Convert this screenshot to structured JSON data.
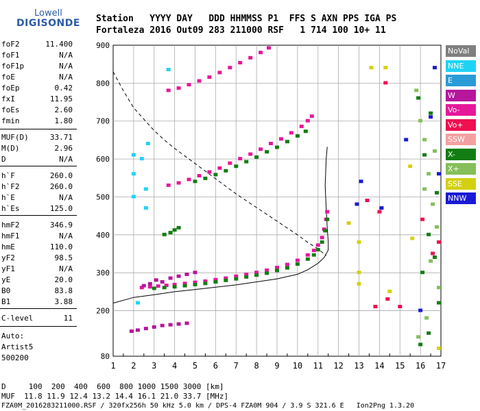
{
  "logo": {
    "line1": "Lowell",
    "line2": "DIGISONDE"
  },
  "header": {
    "row1": "Station   YYYY DAY   DDD HHMMSS P1  FFS S AXN PPS IGA PS",
    "row2": "Fortaleza 2016 Out09 283 211000 RSF   1 714 100 10+ 11"
  },
  "params": [
    {
      "name": "foF2",
      "value": "11.400"
    },
    {
      "name": "foF1",
      "value": "N/A"
    },
    {
      "name": "foF1p",
      "value": "N/A"
    },
    {
      "name": "foE",
      "value": "N/A"
    },
    {
      "name": "foEp",
      "value": "0.42"
    },
    {
      "name": "fxI",
      "value": "11.95"
    },
    {
      "name": "foEs",
      "value": "2.60"
    },
    {
      "name": "fmin",
      "value": "1.80"
    },
    {
      "name": "MUF(D)",
      "value": "33.71"
    },
    {
      "name": "M(D)",
      "value": "2.96"
    },
    {
      "name": "D",
      "value": "N/A"
    },
    {
      "name": "h`F",
      "value": "260.0"
    },
    {
      "name": "h`F2",
      "value": "260.0"
    },
    {
      "name": "h`E",
      "value": "N/A"
    },
    {
      "name": "h`Es",
      "value": "125.0"
    },
    {
      "name": "hmF2",
      "value": "346.9"
    },
    {
      "name": "hmF1",
      "value": "N/A"
    },
    {
      "name": "hmE",
      "value": "110.0"
    },
    {
      "name": "yF2",
      "value": "98.5"
    },
    {
      "name": "yF1",
      "value": "N/A"
    },
    {
      "name": "yE",
      "value": "20.0"
    },
    {
      "name": "B0",
      "value": "83.8"
    },
    {
      "name": "B1",
      "value": "3.88"
    },
    {
      "name": "C-level",
      "value": "11"
    }
  ],
  "auto": {
    "line1": "Auto:",
    "line2": "Artist5",
    "line3": "500200"
  },
  "legend": [
    {
      "label": "NoVal",
      "color": "#7f7f7f"
    },
    {
      "label": "NNE",
      "color": "#1fd3f5"
    },
    {
      "label": "E",
      "color": "#2a9bd6"
    },
    {
      "label": "W",
      "color": "#b5169c"
    },
    {
      "label": "Vo-",
      "color": "#e6189a"
    },
    {
      "label": "Vo+",
      "color": "#ee1050"
    },
    {
      "label": "SSW",
      "color": "#f4a0a0"
    },
    {
      "label": "X-",
      "color": "#137d13"
    },
    {
      "label": "X+",
      "color": "#86bf59"
    },
    {
      "label": "SSE",
      "color": "#d3d012"
    },
    {
      "label": "NNW",
      "color": "#1a1ad4"
    }
  ],
  "footer": {
    "line1": "D     100  200  400  600  800 1000 1500 3000 [km]",
    "line2": "MUF  11.8 11.9 12.4 13.2 14.4 16.1 21.0 33.7 [MHz]",
    "line3": "FZA0M_2016283211000.RSF / 320fx256h 50 kHz 5.0 km / DPS-4 FZA0M 904 / 3.9 S 321.6 E   Ion2Png 1.3.20"
  },
  "chart_data": {
    "type": "scatter",
    "title": "",
    "xlabel": "",
    "ylabel": "",
    "xlim": [
      1,
      17
    ],
    "ylim": [
      80,
      900
    ],
    "x_ticks": [
      1,
      2,
      3,
      4,
      5,
      6,
      7,
      8,
      9,
      10,
      11,
      12,
      13,
      14,
      15,
      16,
      17
    ],
    "y_ticks": [
      200,
      300,
      400,
      500,
      600,
      700,
      800,
      900
    ],
    "y_tick_labels": [
      "200",
      "300",
      "400",
      "500",
      "600",
      "700",
      "800",
      "900"
    ],
    "y_axis_bottom_label": "80",
    "series": [
      {
        "color_key": "Vo-",
        "points": [
          [
            2.4,
            260
          ],
          [
            2.8,
            262
          ],
          [
            3.2,
            264
          ],
          [
            3.6,
            266
          ],
          [
            4.0,
            268
          ],
          [
            4.5,
            271
          ],
          [
            5.0,
            274
          ],
          [
            5.5,
            277
          ],
          [
            6.0,
            281
          ],
          [
            6.5,
            285
          ],
          [
            7.0,
            290
          ],
          [
            7.5,
            295
          ],
          [
            8.0,
            300
          ],
          [
            8.5,
            306
          ],
          [
            9.0,
            313
          ],
          [
            9.5,
            321
          ],
          [
            10.0,
            332
          ],
          [
            10.5,
            346
          ],
          [
            10.8,
            358
          ],
          [
            11.0,
            372
          ],
          [
            11.2,
            392
          ],
          [
            11.3,
            414
          ],
          [
            11.4,
            440
          ],
          [
            11.45,
            460
          ]
        ]
      },
      {
        "color_key": "X-",
        "points": [
          [
            3.0,
            258
          ],
          [
            3.5,
            260
          ],
          [
            4.0,
            262
          ],
          [
            4.5,
            265
          ],
          [
            5.0,
            268
          ],
          [
            5.5,
            271
          ],
          [
            6.0,
            275
          ],
          [
            6.5,
            279
          ],
          [
            7.0,
            283
          ],
          [
            7.5,
            288
          ],
          [
            8.0,
            293
          ],
          [
            8.5,
            298
          ],
          [
            9.0,
            305
          ],
          [
            9.5,
            312
          ],
          [
            10.0,
            322
          ],
          [
            10.5,
            335
          ],
          [
            10.8,
            346
          ],
          [
            11.0,
            360
          ],
          [
            11.2,
            380
          ],
          [
            11.35,
            410
          ],
          [
            11.45,
            440
          ]
        ]
      },
      {
        "color_key": "W",
        "points": [
          [
            2.5,
            265
          ],
          [
            2.8,
            270
          ],
          [
            3.1,
            280
          ],
          [
            3.4,
            275
          ],
          [
            3.8,
            285
          ],
          [
            4.2,
            290
          ],
          [
            4.6,
            295
          ],
          [
            5.0,
            300
          ],
          [
            1.9,
            145
          ],
          [
            2.2,
            148
          ],
          [
            2.6,
            152
          ],
          [
            3.0,
            156
          ],
          [
            3.4,
            160
          ],
          [
            3.8,
            162
          ],
          [
            4.2,
            164
          ],
          [
            4.6,
            166
          ]
        ]
      },
      {
        "color_key": "Vo-",
        "points": [
          [
            3.7,
            530
          ],
          [
            4.2,
            536
          ],
          [
            4.7,
            545
          ],
          [
            5.2,
            555
          ],
          [
            5.7,
            565
          ],
          [
            6.2,
            575
          ],
          [
            6.7,
            588
          ],
          [
            7.2,
            600
          ],
          [
            7.7,
            612
          ],
          [
            8.2,
            625
          ],
          [
            8.7,
            640
          ],
          [
            9.2,
            652
          ],
          [
            9.7,
            668
          ],
          [
            10.2,
            685
          ],
          [
            10.5,
            700
          ],
          [
            10.7,
            712
          ]
        ]
      },
      {
        "color_key": "X-",
        "points": [
          [
            5.0,
            540
          ],
          [
            5.5,
            548
          ],
          [
            6.0,
            558
          ],
          [
            6.5,
            568
          ],
          [
            7.0,
            580
          ],
          [
            7.5,
            592
          ],
          [
            8.0,
            604
          ],
          [
            8.5,
            618
          ],
          [
            9.0,
            630
          ],
          [
            9.5,
            645
          ],
          [
            10.0,
            660
          ],
          [
            10.4,
            672
          ]
        ]
      },
      {
        "color_key": "Vo-",
        "points": [
          [
            3.7,
            780
          ],
          [
            4.2,
            786
          ],
          [
            4.7,
            795
          ],
          [
            5.2,
            805
          ],
          [
            5.7,
            815
          ],
          [
            6.2,
            827
          ],
          [
            6.7,
            840
          ],
          [
            7.2,
            853
          ],
          [
            7.7,
            866
          ],
          [
            8.2,
            880
          ],
          [
            8.6,
            892
          ]
        ]
      },
      {
        "color_key": "X-",
        "points": [
          [
            3.5,
            400
          ],
          [
            3.8,
            405
          ],
          [
            4.0,
            412
          ],
          [
            4.2,
            418
          ]
        ]
      },
      {
        "color_key": "NNE",
        "points": [
          [
            2.0,
            500
          ],
          [
            2.0,
            560
          ],
          [
            2.0,
            610
          ],
          [
            2.6,
            470
          ],
          [
            2.6,
            520
          ],
          [
            3.7,
            835
          ],
          [
            2.2,
            220
          ],
          [
            2.4,
            600
          ],
          [
            2.7,
            640
          ]
        ]
      },
      {
        "color_key": "X+",
        "points": [
          [
            15.8,
            780
          ],
          [
            16.0,
            700
          ],
          [
            16.2,
            650
          ],
          [
            16.4,
            560
          ],
          [
            16.6,
            480
          ],
          [
            16.8,
            420
          ],
          [
            16.5,
            330
          ],
          [
            16.9,
            260
          ],
          [
            16.3,
            180
          ],
          [
            15.9,
            130
          ],
          [
            16.7,
            620
          ],
          [
            16.2,
            520
          ]
        ]
      },
      {
        "color_key": "X-",
        "points": [
          [
            15.9,
            760
          ],
          [
            16.2,
            610
          ],
          [
            16.5,
            720
          ],
          [
            16.8,
            510
          ],
          [
            16.4,
            400
          ],
          [
            16.7,
            340
          ],
          [
            16.1,
            300
          ],
          [
            16.9,
            220
          ],
          [
            16.4,
            140
          ],
          [
            16.0,
            110
          ]
        ]
      },
      {
        "color_key": "SSE",
        "points": [
          [
            13.0,
            380
          ],
          [
            13.0,
            270
          ],
          [
            13.0,
            300
          ],
          [
            14.5,
            250
          ],
          [
            15.5,
            580
          ],
          [
            15.6,
            390
          ],
          [
            16.9,
            100
          ],
          [
            12.5,
            430
          ],
          [
            14.3,
            840
          ],
          [
            13.6,
            840
          ]
        ]
      },
      {
        "color_key": "Vo+",
        "points": [
          [
            13.8,
            210
          ],
          [
            14.4,
            230
          ],
          [
            14.0,
            460
          ],
          [
            16.1,
            440
          ],
          [
            16.6,
            350
          ],
          [
            16.9,
            380
          ],
          [
            15.0,
            210
          ],
          [
            13.4,
            490
          ],
          [
            14.3,
            800
          ]
        ]
      },
      {
        "color_key": "NNW",
        "points": [
          [
            12.9,
            480
          ],
          [
            13.1,
            540
          ],
          [
            14.1,
            470
          ],
          [
            15.3,
            650
          ],
          [
            16.5,
            710
          ],
          [
            16.7,
            840
          ],
          [
            16.0,
            200
          ],
          [
            16.9,
            560
          ]
        ]
      }
    ],
    "lines": [
      {
        "name": "profile",
        "style": "solid",
        "points": [
          [
            1.0,
            220
          ],
          [
            2.0,
            235
          ],
          [
            3.0,
            242
          ],
          [
            4.0,
            250
          ],
          [
            5.0,
            256
          ],
          [
            6.0,
            262
          ],
          [
            7.0,
            268
          ],
          [
            8.0,
            276
          ],
          [
            9.0,
            284
          ],
          [
            10.0,
            296
          ],
          [
            10.5,
            308
          ],
          [
            11.0,
            325
          ],
          [
            11.3,
            340
          ],
          [
            11.5,
            360
          ],
          [
            11.5,
            380
          ],
          [
            11.45,
            420
          ],
          [
            11.4,
            470
          ],
          [
            11.35,
            530
          ],
          [
            11.4,
            600
          ],
          [
            11.45,
            632
          ]
        ]
      },
      {
        "name": "muf",
        "style": "dashed",
        "points": [
          [
            1.0,
            830
          ],
          [
            1.5,
            780
          ],
          [
            2.0,
            735
          ],
          [
            2.5,
            705
          ],
          [
            3.0,
            675
          ],
          [
            3.5,
            650
          ],
          [
            4.0,
            628
          ],
          [
            4.5,
            608
          ],
          [
            5.0,
            588
          ],
          [
            5.5,
            568
          ],
          [
            6.0,
            548
          ],
          [
            6.5,
            528
          ],
          [
            7.0,
            508
          ],
          [
            7.5,
            490
          ],
          [
            8.0,
            472
          ],
          [
            8.5,
            454
          ],
          [
            9.0,
            436
          ],
          [
            9.5,
            418
          ],
          [
            10.0,
            400
          ],
          [
            10.5,
            380
          ],
          [
            11.0,
            363
          ],
          [
            11.4,
            345
          ]
        ]
      }
    ]
  }
}
